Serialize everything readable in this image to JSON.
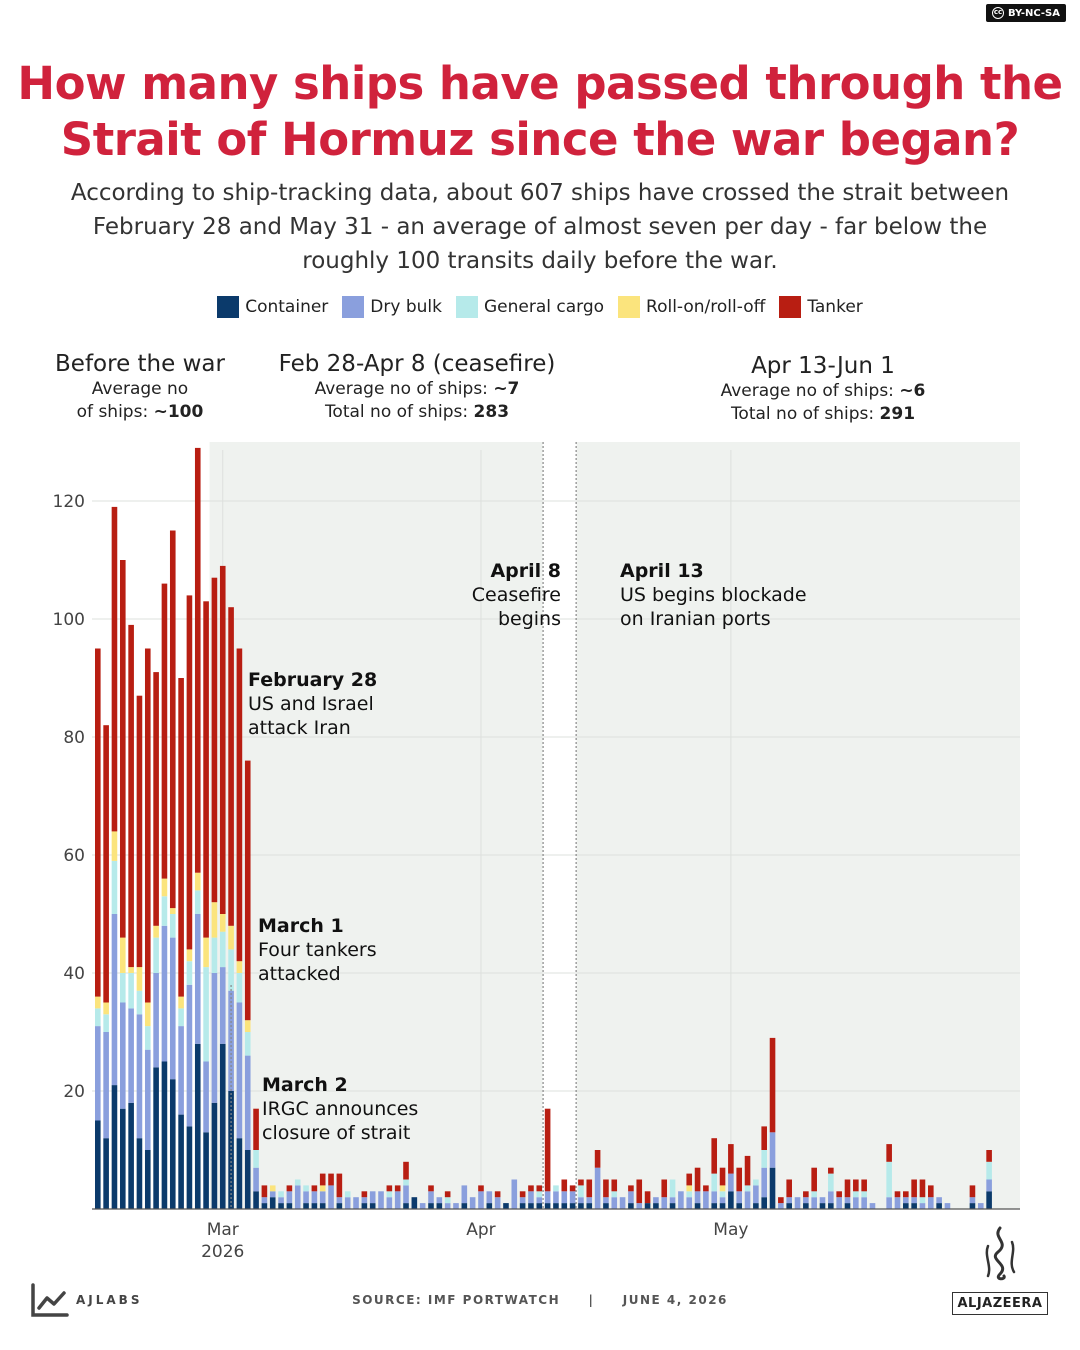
{
  "license": "BY-NC-SA",
  "title": "How many ships have passed through the Strait of Hormuz since the war began?",
  "subtitle": "According to ship-tracking data, about 607 ships have crossed the strait between February 28 and May 31 - an average of almost seven per day - far below the roughly 100 transits daily before the war.",
  "legend": [
    {
      "name": "Container",
      "color": "#0b3a6b"
    },
    {
      "name": "Dry bulk",
      "color": "#8a9fdd"
    },
    {
      "name": "General cargo",
      "color": "#b6eaea"
    },
    {
      "name": "Roll-on/roll-off",
      "color": "#fbe47d"
    },
    {
      "name": "Tanker",
      "color": "#b81e12"
    }
  ],
  "periods": {
    "before": {
      "heading": "Before the war",
      "line1": "Average no",
      "line2_prefix": "of ships: ",
      "line2_value": "~100"
    },
    "ceasefire": {
      "heading": "Feb 28-Apr 8 (ceasefire)",
      "avg_prefix": "Average no of ships: ",
      "avg_value": "~7",
      "total_prefix": "Total no of ships: ",
      "total_value": "283"
    },
    "blockade": {
      "heading": "Apr 13-Jun 1",
      "avg_prefix": "Average no of ships: ",
      "avg_value": "~6",
      "total_prefix": "Total no of ships: ",
      "total_value": "291"
    }
  },
  "annotations": [
    {
      "head": "February 28",
      "lines": [
        "US and Israel",
        "attack Iran"
      ]
    },
    {
      "head": "March 1",
      "lines": [
        "Four tankers",
        "attacked"
      ]
    },
    {
      "head": "March 2",
      "lines": [
        "IRGC announces",
        "closure of strait"
      ]
    },
    {
      "head": "April 8",
      "lines": [
        "Ceasefire",
        "begins"
      ]
    },
    {
      "head": "April 13",
      "lines": [
        "US begins blockade",
        "on Iranian ports"
      ]
    }
  ],
  "footer": {
    "source": "SOURCE:  IMF PORTWATCH",
    "separator": "|",
    "date": "JUNE 4, 2026"
  },
  "branding": {
    "lab": "AJLABS",
    "network": "ALJAZEERA"
  },
  "chart_data": {
    "type": "bar",
    "stacked": true,
    "title": "",
    "xlabel": "",
    "ylabel": "",
    "ylim": [
      0,
      130
    ],
    "yticks": [
      20,
      40,
      60,
      80,
      100,
      120
    ],
    "x_ticks": [
      {
        "label": "Mar",
        "label2": "2026",
        "date": "2026-03-01"
      },
      {
        "label": "Apr",
        "label2": "",
        "date": "2026-04-01"
      },
      {
        "label": "May",
        "label2": "",
        "date": "2026-05-01"
      }
    ],
    "start_date": "2026-02-14",
    "series_order": [
      "Container",
      "Dry bulk",
      "General cargo",
      "Roll-on/roll-off",
      "Tanker"
    ],
    "days": [
      {
        "date": "2026-02-14",
        "values": [
          15,
          16,
          3,
          2,
          59
        ]
      },
      {
        "date": "2026-02-15",
        "values": [
          12,
          18,
          3,
          2,
          47
        ]
      },
      {
        "date": "2026-02-16",
        "values": [
          21,
          29,
          9,
          5,
          55
        ]
      },
      {
        "date": "2026-02-17",
        "values": [
          17,
          18,
          5,
          6,
          64
        ]
      },
      {
        "date": "2026-02-18",
        "values": [
          18,
          16,
          6,
          1,
          58
        ]
      },
      {
        "date": "2026-02-19",
        "values": [
          12,
          21,
          4,
          4,
          46
        ]
      },
      {
        "date": "2026-02-20",
        "values": [
          10,
          17,
          4,
          4,
          60
        ]
      },
      {
        "date": "2026-02-21",
        "values": [
          24,
          16,
          6,
          2,
          43
        ]
      },
      {
        "date": "2026-02-22",
        "values": [
          25,
          23,
          5,
          3,
          50
        ]
      },
      {
        "date": "2026-02-23",
        "values": [
          22,
          24,
          4,
          1,
          64
        ]
      },
      {
        "date": "2026-02-24",
        "values": [
          16,
          15,
          3,
          2,
          54
        ]
      },
      {
        "date": "2026-02-25",
        "values": [
          14,
          24,
          4,
          2,
          60
        ]
      },
      {
        "date": "2026-02-26",
        "values": [
          28,
          22,
          4,
          3,
          72
        ]
      },
      {
        "date": "2026-02-27",
        "values": [
          13,
          12,
          16,
          5,
          57
        ]
      },
      {
        "date": "2026-02-28",
        "values": [
          18,
          22,
          6,
          6,
          55
        ]
      },
      {
        "date": "2026-03-01",
        "values": [
          28,
          13,
          6,
          3,
          59
        ]
      },
      {
        "date": "2026-03-02",
        "values": [
          20,
          17,
          7,
          4,
          54
        ]
      },
      {
        "date": "2026-03-03",
        "values": [
          12,
          23,
          5,
          2,
          53
        ]
      },
      {
        "date": "2026-03-04",
        "values": [
          10,
          16,
          4,
          2,
          44
        ]
      },
      {
        "date": "2026-03-05",
        "values": [
          3,
          4,
          3,
          0,
          7
        ]
      },
      {
        "date": "2026-03-06",
        "values": [
          1,
          1,
          0,
          0,
          2
        ]
      },
      {
        "date": "2026-03-07",
        "values": [
          2,
          1,
          0,
          1,
          0
        ]
      },
      {
        "date": "2026-03-08",
        "values": [
          1,
          1,
          1,
          0,
          0
        ]
      },
      {
        "date": "2026-03-09",
        "values": [
          1,
          2,
          0,
          0,
          1
        ]
      },
      {
        "date": "2026-03-10",
        "values": [
          0,
          4,
          1,
          0,
          0
        ]
      },
      {
        "date": "2026-03-11",
        "values": [
          1,
          2,
          1,
          0,
          0
        ]
      },
      {
        "date": "2026-03-12",
        "values": [
          1,
          2,
          0,
          0,
          1
        ]
      },
      {
        "date": "2026-03-13",
        "values": [
          1,
          2,
          0,
          1,
          2
        ]
      },
      {
        "date": "2026-03-14",
        "values": [
          0,
          4,
          0,
          0,
          2
        ]
      },
      {
        "date": "2026-03-15",
        "values": [
          1,
          1,
          0,
          0,
          4
        ]
      },
      {
        "date": "2026-03-16",
        "values": [
          0,
          2,
          1,
          0,
          0
        ]
      },
      {
        "date": "2026-03-17",
        "values": [
          0,
          2,
          0,
          0,
          0
        ]
      },
      {
        "date": "2026-03-18",
        "values": [
          1,
          1,
          0,
          0,
          1
        ]
      },
      {
        "date": "2026-03-19",
        "values": [
          1,
          2,
          0,
          0,
          0
        ]
      },
      {
        "date": "2026-03-20",
        "values": [
          0,
          3,
          0,
          0,
          0
        ]
      },
      {
        "date": "2026-03-21",
        "values": [
          0,
          2,
          1,
          0,
          1
        ]
      },
      {
        "date": "2026-03-22",
        "values": [
          0,
          3,
          0,
          0,
          1
        ]
      },
      {
        "date": "2026-03-23",
        "values": [
          1,
          3,
          1,
          0,
          3
        ]
      },
      {
        "date": "2026-03-24",
        "values": [
          2,
          0,
          0,
          0,
          0
        ]
      },
      {
        "date": "2026-03-25",
        "values": [
          0,
          1,
          0,
          0,
          0
        ]
      },
      {
        "date": "2026-03-26",
        "values": [
          1,
          2,
          0,
          0,
          1
        ]
      },
      {
        "date": "2026-03-27",
        "values": [
          1,
          1,
          0,
          0,
          0
        ]
      },
      {
        "date": "2026-03-28",
        "values": [
          0,
          1,
          1,
          0,
          1
        ]
      },
      {
        "date": "2026-03-29",
        "values": [
          0,
          1,
          0,
          0,
          0
        ]
      },
      {
        "date": "2026-03-30",
        "values": [
          1,
          3,
          0,
          0,
          0
        ]
      },
      {
        "date": "2026-03-31",
        "values": [
          0,
          2,
          0,
          0,
          0
        ]
      },
      {
        "date": "2026-04-01",
        "values": [
          0,
          3,
          0,
          0,
          1
        ]
      },
      {
        "date": "2026-04-02",
        "values": [
          1,
          2,
          0,
          0,
          0
        ]
      },
      {
        "date": "2026-04-03",
        "values": [
          0,
          2,
          0,
          0,
          1
        ]
      },
      {
        "date": "2026-04-04",
        "values": [
          1,
          0,
          0,
          0,
          0
        ]
      },
      {
        "date": "2026-04-05",
        "values": [
          0,
          5,
          0,
          0,
          0
        ]
      },
      {
        "date": "2026-04-06",
        "values": [
          1,
          1,
          0,
          0,
          1
        ]
      },
      {
        "date": "2026-04-07",
        "values": [
          1,
          2,
          0,
          0,
          1
        ]
      },
      {
        "date": "2026-04-08",
        "values": [
          1,
          1,
          1,
          0,
          1
        ]
      },
      {
        "date": "2026-04-09",
        "values": [
          1,
          2,
          0,
          0,
          14
        ]
      },
      {
        "date": "2026-04-10",
        "values": [
          1,
          2,
          1,
          0,
          0
        ]
      },
      {
        "date": "2026-04-11",
        "values": [
          1,
          2,
          0,
          0,
          2
        ]
      },
      {
        "date": "2026-04-12",
        "values": [
          1,
          2,
          0,
          0,
          1
        ]
      },
      {
        "date": "2026-04-13",
        "values": [
          1,
          1,
          2,
          0,
          1
        ]
      },
      {
        "date": "2026-04-14",
        "values": [
          1,
          1,
          0,
          0,
          3
        ]
      },
      {
        "date": "2026-04-15",
        "values": [
          0,
          7,
          0,
          0,
          3
        ]
      },
      {
        "date": "2026-04-16",
        "values": [
          1,
          1,
          0,
          0,
          3
        ]
      },
      {
        "date": "2026-04-17",
        "values": [
          0,
          2,
          1,
          0,
          2
        ]
      },
      {
        "date": "2026-04-18",
        "values": [
          0,
          2,
          0,
          0,
          0
        ]
      },
      {
        "date": "2026-04-19",
        "values": [
          1,
          2,
          0,
          0,
          1
        ]
      },
      {
        "date": "2026-04-20",
        "values": [
          0,
          1,
          0,
          0,
          4
        ]
      },
      {
        "date": "2026-04-21",
        "values": [
          1,
          0,
          0,
          0,
          2
        ]
      },
      {
        "date": "2026-04-22",
        "values": [
          1,
          1,
          0,
          0,
          0
        ]
      },
      {
        "date": "2026-04-23",
        "values": [
          0,
          2,
          0,
          0,
          3
        ]
      },
      {
        "date": "2026-04-24",
        "values": [
          1,
          1,
          3,
          0,
          0
        ]
      },
      {
        "date": "2026-04-25",
        "values": [
          0,
          3,
          0,
          0,
          0
        ]
      },
      {
        "date": "2026-04-26",
        "values": [
          0,
          2,
          1,
          1,
          2
        ]
      },
      {
        "date": "2026-04-27",
        "values": [
          1,
          2,
          0,
          0,
          4
        ]
      },
      {
        "date": "2026-04-28",
        "values": [
          0,
          3,
          0,
          0,
          1
        ]
      },
      {
        "date": "2026-04-29",
        "values": [
          1,
          2,
          3,
          0,
          6
        ]
      },
      {
        "date": "2026-04-30",
        "values": [
          1,
          1,
          1,
          1,
          3
        ]
      },
      {
        "date": "2026-05-01",
        "values": [
          3,
          3,
          0,
          0,
          5
        ]
      },
      {
        "date": "2026-05-02",
        "values": [
          1,
          2,
          0,
          0,
          4
        ]
      },
      {
        "date": "2026-05-03",
        "values": [
          0,
          3,
          1,
          0,
          5
        ]
      },
      {
        "date": "2026-05-04",
        "values": [
          1,
          3,
          1,
          0,
          0
        ]
      },
      {
        "date": "2026-05-05",
        "values": [
          2,
          5,
          3,
          0,
          4
        ]
      },
      {
        "date": "2026-05-06",
        "values": [
          7,
          6,
          0,
          0,
          16
        ]
      },
      {
        "date": "2026-05-07",
        "values": [
          0,
          1,
          0,
          0,
          1
        ]
      },
      {
        "date": "2026-05-08",
        "values": [
          1,
          1,
          0,
          0,
          3
        ]
      },
      {
        "date": "2026-05-09",
        "values": [
          0,
          2,
          0,
          0,
          0
        ]
      },
      {
        "date": "2026-05-10",
        "values": [
          1,
          1,
          0,
          0,
          1
        ]
      },
      {
        "date": "2026-05-11",
        "values": [
          0,
          2,
          1,
          0,
          4
        ]
      },
      {
        "date": "2026-05-12",
        "values": [
          1,
          1,
          0,
          0,
          0
        ]
      },
      {
        "date": "2026-05-13",
        "values": [
          1,
          2,
          3,
          0,
          1
        ]
      },
      {
        "date": "2026-05-14",
        "values": [
          0,
          2,
          0,
          0,
          1
        ]
      },
      {
        "date": "2026-05-15",
        "values": [
          1,
          1,
          0,
          0,
          3
        ]
      },
      {
        "date": "2026-05-16",
        "values": [
          0,
          2,
          1,
          0,
          2
        ]
      },
      {
        "date": "2026-05-17",
        "values": [
          0,
          2,
          1,
          0,
          2
        ]
      },
      {
        "date": "2026-05-18",
        "values": [
          0,
          1,
          0,
          0,
          0
        ]
      },
      {
        "date": "2026-05-19",
        "values": [
          0,
          0,
          0,
          0,
          0
        ]
      },
      {
        "date": "2026-05-20",
        "values": [
          0,
          2,
          6,
          0,
          3
        ]
      },
      {
        "date": "2026-05-21",
        "values": [
          0,
          2,
          0,
          0,
          1
        ]
      },
      {
        "date": "2026-05-22",
        "values": [
          1,
          1,
          0,
          0,
          1
        ]
      },
      {
        "date": "2026-05-23",
        "values": [
          1,
          1,
          0,
          0,
          3
        ]
      },
      {
        "date": "2026-05-24",
        "values": [
          0,
          1,
          1,
          0,
          3
        ]
      },
      {
        "date": "2026-05-25",
        "values": [
          0,
          2,
          0,
          0,
          2
        ]
      },
      {
        "date": "2026-05-26",
        "values": [
          1,
          1,
          0,
          0,
          0
        ]
      },
      {
        "date": "2026-05-27",
        "values": [
          0,
          1,
          0,
          0,
          0
        ]
      },
      {
        "date": "2026-05-28",
        "values": [
          0,
          0,
          0,
          0,
          0
        ]
      },
      {
        "date": "2026-05-29",
        "values": [
          0,
          0,
          0,
          0,
          0
        ]
      },
      {
        "date": "2026-05-30",
        "values": [
          1,
          1,
          0,
          0,
          2
        ]
      },
      {
        "date": "2026-05-31",
        "values": [
          0,
          1,
          0,
          0,
          0
        ]
      },
      {
        "date": "2026-06-01",
        "values": [
          3,
          2,
          3,
          0,
          2
        ]
      }
    ]
  }
}
